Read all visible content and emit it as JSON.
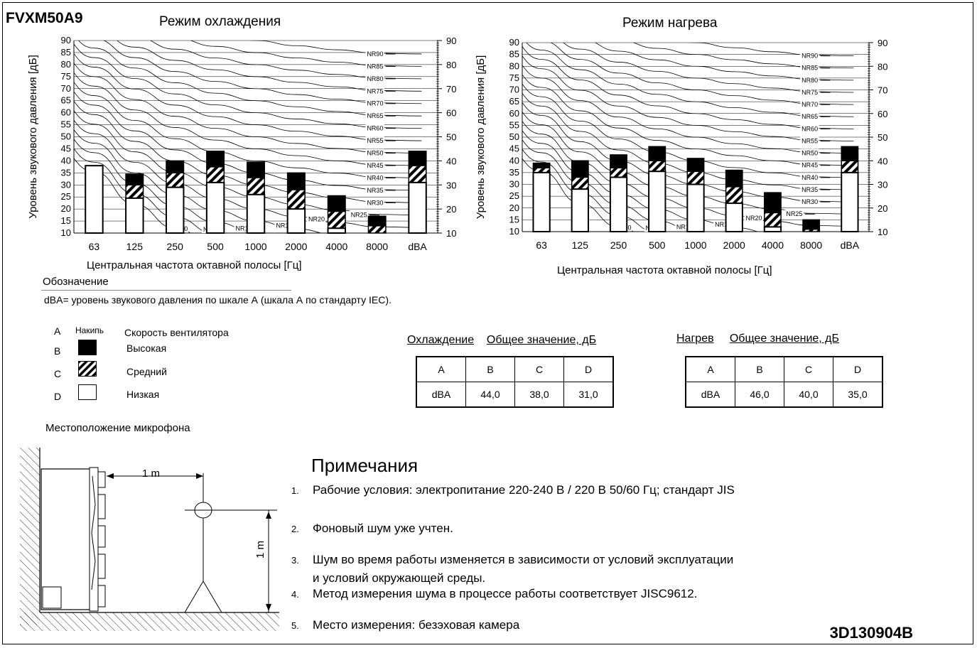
{
  "model": "FVXM50A9",
  "chart_data": [
    {
      "type": "bar",
      "title": "Режим охлаждения",
      "xlabel": "Центральная частота октавной полосы [Гц]",
      "ylabel": "Уровень звукового давления [дБ]",
      "ylim": [
        10,
        90
      ],
      "yticks": [
        10,
        15,
        20,
        25,
        30,
        35,
        40,
        45,
        50,
        55,
        60,
        65,
        70,
        75,
        80,
        85,
        90
      ],
      "yticks_right": [
        10,
        20,
        30,
        40,
        50,
        60,
        70,
        80,
        90
      ],
      "categories": [
        "63",
        "125",
        "250",
        "500",
        "1000",
        "2000",
        "4000",
        "8000",
        "dBA"
      ],
      "series": [
        {
          "name": "Высокая",
          "values": [
            38,
            34.5,
            40,
            44,
            39.5,
            35,
            25.5,
            17,
            44
          ]
        },
        {
          "name": "Средний",
          "values": [
            38,
            30,
            35,
            37.5,
            33,
            28,
            19,
            13,
            38
          ]
        },
        {
          "name": "Низкая",
          "values": [
            38,
            24.5,
            29,
            31,
            26,
            20,
            12,
            10,
            31
          ]
        }
      ],
      "nr_curves": [
        "NR0",
        "NR5",
        "NR10",
        "NR15",
        "NR20",
        "NR25",
        "NR30",
        "NR35",
        "NR40",
        "NR45",
        "NR50",
        "NR55",
        "NR60",
        "NR65",
        "NR70",
        "NR75",
        "NR80",
        "NR85",
        "NR90"
      ],
      "grid": true
    },
    {
      "type": "bar",
      "title": "Режим нагрева",
      "xlabel": "Центральная частота октавной полосы [Гц]",
      "ylabel": "Уровень звукового давления [дБ]",
      "ylim": [
        10,
        90
      ],
      "yticks": [
        10,
        15,
        20,
        25,
        30,
        35,
        40,
        45,
        50,
        55,
        60,
        65,
        70,
        75,
        80,
        85,
        90
      ],
      "yticks_right": [
        10,
        20,
        30,
        40,
        50,
        60,
        70,
        80,
        90
      ],
      "categories": [
        "63",
        "125",
        "250",
        "500",
        "1000",
        "2000",
        "4000",
        "8000",
        "dBA"
      ],
      "series": [
        {
          "name": "Высокая",
          "values": [
            39,
            40,
            42.5,
            46,
            41,
            36,
            26.5,
            15,
            46
          ]
        },
        {
          "name": "Средний",
          "values": [
            37,
            33,
            37,
            40,
            35.5,
            29,
            18,
            11,
            40
          ]
        },
        {
          "name": "Низкая",
          "values": [
            35,
            28,
            33,
            35.5,
            30,
            22,
            12,
            10,
            35
          ]
        }
      ],
      "nr_curves": [
        "NR0",
        "NR5",
        "NR10",
        "NR15",
        "NR20",
        "NR25",
        "NR30",
        "NR35",
        "NR40",
        "NR45",
        "NR50",
        "NR55",
        "NR60",
        "NR65",
        "NR70",
        "NR75",
        "NR80",
        "NR85",
        "NR90"
      ],
      "grid": true
    }
  ],
  "legend": {
    "title": "Обозначение",
    "dba_note": "dBA= уровень звукового давления по шкале А (шкала А по стандарту IEC).",
    "header_a": "A",
    "header_mark": "Накипь",
    "header_speed": "Скорость вентилятора",
    "rows": [
      {
        "letter": "B",
        "label": "Высокая"
      },
      {
        "letter": "C",
        "label": "Средний"
      },
      {
        "letter": "D",
        "label": "Низкая"
      }
    ]
  },
  "tables": {
    "cooling": {
      "caption_mode": "Охлаждение",
      "caption_value": "Общее значение, дБ",
      "header": [
        "A",
        "B",
        "C",
        "D"
      ],
      "row": [
        "dBA",
        "44,0",
        "38,0",
        "31,0"
      ]
    },
    "heating": {
      "caption_mode": "Нагрев",
      "caption_value": "Общее значение, дБ",
      "header": [
        "A",
        "B",
        "C",
        "D"
      ],
      "row": [
        "dBA",
        "46,0",
        "40,0",
        "35,0"
      ]
    }
  },
  "microphone": {
    "title": "Местоположение микрофона",
    "dist_horizontal": "1 m",
    "dist_vertical": "1 m"
  },
  "notes": {
    "title": "Примечания",
    "items": [
      {
        "n": "1.",
        "text": "Рабочие условия: электропитание 220-240 В / 220 В 50/60 Гц; стандарт JIS"
      },
      {
        "n": "2.",
        "text": "Фоновый шум уже учтен."
      },
      {
        "n": "3.",
        "text": "Шум во время работы изменяется в зависимости от условий эксплуатации"
      },
      {
        "n": "",
        "text": "и условий окружающей среды."
      },
      {
        "n": "4.",
        "text": "Метод измерения шума в процессе работы соответствует JISC9612."
      },
      {
        "n": "5.",
        "text": "Место измерения: безэховая камера"
      }
    ]
  },
  "doc_id": "3D130904B",
  "colors": {
    "high": "#000000",
    "low": "#ffffff",
    "grid": "#000000"
  }
}
